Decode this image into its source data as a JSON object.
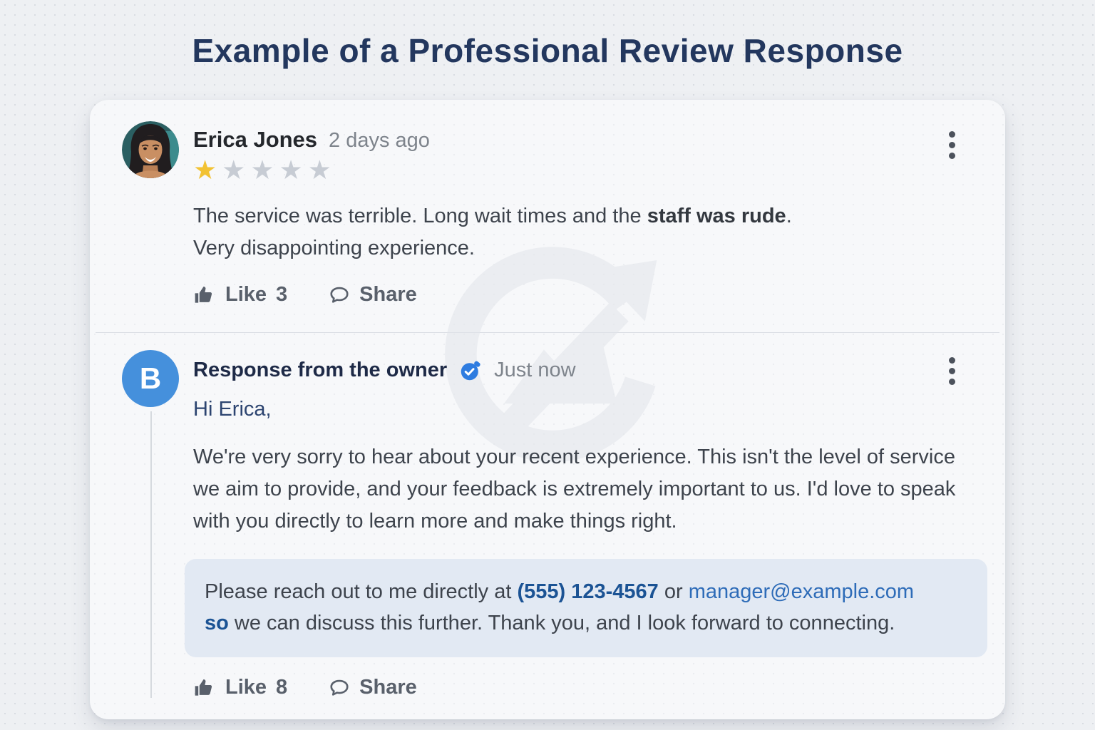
{
  "page": {
    "title": "Example of a Professional Review Response"
  },
  "colors": {
    "title_navy": "#23375e",
    "owner_avatar_blue": "#4590dc",
    "verified_blue": "#2e7ce0",
    "star_gold": "#f2c233",
    "star_gray": "#c7ccd4",
    "highlight_bg": "#e2e9f3",
    "phone_navy": "#1b5394",
    "email_blue": "#2e6cb8"
  },
  "review": {
    "author": "Erica Jones",
    "timestamp": "2 days ago",
    "rating": 1,
    "max_rating": 5,
    "text_segments": [
      {
        "text": "The service was terrible. Long wait times and the ",
        "style": "normal"
      },
      {
        "text": "staff was rude",
        "style": "bold"
      },
      {
        "text": ".",
        "style": "normal"
      },
      {
        "break": true
      },
      {
        "text": "Very disappointing experience.",
        "style": "normal"
      }
    ],
    "like_label": "Like",
    "like_count": "3",
    "share_label": "Share"
  },
  "response": {
    "avatar_letter": "B",
    "title": "Response from the owner",
    "timestamp": "Just now",
    "greeting": "Hi Erica,",
    "body": "We're very sorry to hear about your recent experience. This isn't the level of service we aim to provide, and your feedback is extremely important to us. I'd love to speak with you directly to learn more and make things right.",
    "note_segments": [
      {
        "text": "Please reach out to me directly at ",
        "style": "normal"
      },
      {
        "text": "(555) 123-4567",
        "style": "phone"
      },
      {
        "text": " or ",
        "style": "normal"
      },
      {
        "text": "manager@example.com",
        "style": "email"
      },
      {
        "break": true
      },
      {
        "text": "so",
        "style": "navy"
      },
      {
        "text": " we can discuss this further. Thank you, and I look forward to connecting.",
        "style": "normal"
      }
    ],
    "like_label": "Like",
    "like_count": "8",
    "share_label": "Share"
  }
}
